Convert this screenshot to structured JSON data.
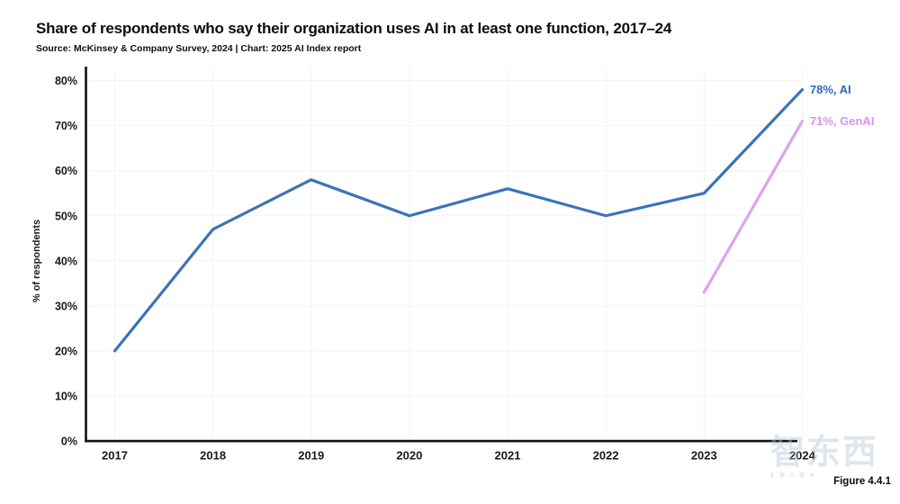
{
  "header": {
    "title": "Share of respondents who say their organization uses AI in at least one function, 2017–24",
    "subtitle": "Source: McKinsey & Company Survey, 2024 | Chart: 2025 AI Index report"
  },
  "chart_data": {
    "type": "line",
    "title": "Share of respondents who say their organization uses AI in at least one function, 2017–24",
    "x": [
      "2017",
      "2018",
      "2019",
      "2020",
      "2021",
      "2022",
      "2023",
      "2024"
    ],
    "series": [
      {
        "name": "AI",
        "values": [
          20,
          47,
          58,
          50,
          56,
          50,
          55,
          78
        ],
        "color": "#3a73b9",
        "label": "78%, AI",
        "label_color": "#2d68b2"
      },
      {
        "name": "GenAI",
        "values": [
          null,
          null,
          null,
          null,
          null,
          null,
          33,
          71
        ],
        "color": "#dda3f2",
        "label": "71%, GenAI",
        "label_color": "#d593f0"
      }
    ],
    "xlabel": "",
    "ylabel": "% of respondents",
    "ylim": [
      0,
      80
    ],
    "y_tick_step": 10,
    "y_tick_suffix": "%",
    "grid": true,
    "grid_color": "#f3f3f5",
    "axis_color": "#111111",
    "legend_position": "line-end-labels"
  },
  "footer": {
    "figure_label": "Figure 4.4.1"
  },
  "watermark": {
    "text": "智东西",
    "subtext": "zhidx",
    "color": "#b6c0d2"
  }
}
